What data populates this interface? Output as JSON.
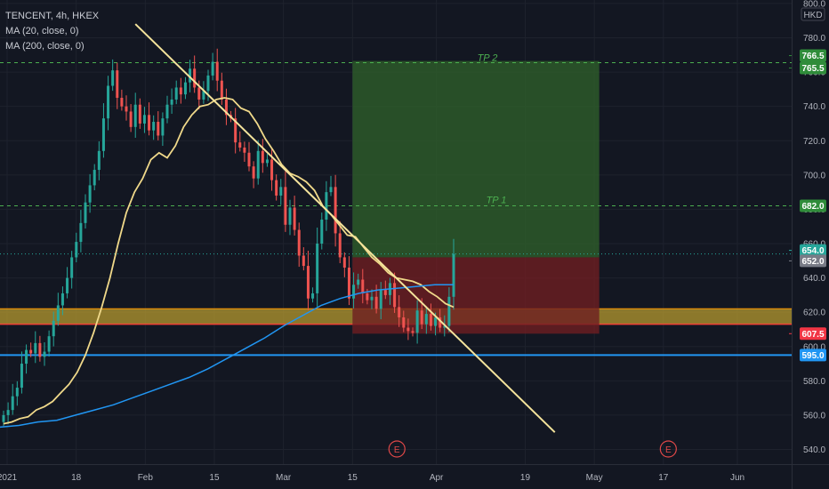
{
  "legend": {
    "symbol": "TENCENT, 4h, HKEX",
    "ma20": "MA (20, close, 0)",
    "ma200": "MA (200, close, 0)"
  },
  "currency": "HKD",
  "colors": {
    "background": "#131722",
    "up": "#26a69a",
    "down": "#ef5350",
    "ma20": "#f0d98a",
    "ma200": "#2196f3",
    "trendline": "#f5e49c",
    "target_zone": "#2e5e2a",
    "stop_zone": "#6e1e22",
    "support_zone": "#b59a2f",
    "support_line": "#2196f3",
    "earnings": "#e04848"
  },
  "chart_data": {
    "type": "candlestick",
    "title": "TENCENT, 4h, HKEX",
    "yaxis": {
      "unit": "HKD",
      "ylim": [
        537,
        800
      ],
      "ticks": [
        540.0,
        560.0,
        580.0,
        600.0,
        620.0,
        640.0,
        660.0,
        680.0,
        700.0,
        720.0,
        740.0,
        760.0,
        780.0,
        800.0
      ]
    },
    "xaxis": {
      "range": [
        "2021-01-04",
        "2021-06-07"
      ],
      "ticks": [
        {
          "label": "2021",
          "date": "2021-01-04"
        },
        {
          "label": "18",
          "date": "2021-01-18"
        },
        {
          "label": "Feb",
          "date": "2021-02-01"
        },
        {
          "label": "15",
          "date": "2021-02-15"
        },
        {
          "label": "Mar",
          "date": "2021-03-01"
        },
        {
          "label": "15",
          "date": "2021-03-15"
        },
        {
          "label": "Apr",
          "date": "2021-04-01"
        },
        {
          "label": "19",
          "date": "2021-04-19"
        },
        {
          "label": "May",
          "date": "2021-05-03"
        },
        {
          "label": "17",
          "date": "2021-05-17"
        },
        {
          "label": "Jun",
          "date": "2021-06-01"
        }
      ]
    },
    "closes": [
      560,
      563,
      571,
      576,
      590,
      598,
      596,
      602,
      594,
      597,
      606,
      615,
      624,
      631,
      640,
      652,
      661,
      672,
      684,
      694,
      703,
      714,
      733,
      752,
      761,
      745,
      740,
      737,
      728,
      741,
      730,
      735,
      726,
      731,
      723,
      733,
      741,
      744,
      751,
      747,
      754,
      762,
      751,
      744,
      749,
      758,
      766,
      755,
      744,
      735,
      733,
      719,
      716,
      713,
      705,
      698,
      714,
      707,
      709,
      697,
      688,
      693,
      671,
      681,
      668,
      653,
      647,
      628,
      631,
      660,
      674,
      690,
      693,
      666,
      652,
      646,
      628,
      636,
      639,
      631,
      627,
      629,
      622,
      633,
      630,
      637,
      623,
      617,
      611,
      609,
      608,
      621,
      613,
      619,
      612,
      617,
      611,
      612,
      629,
      654
    ],
    "moving_averages": [
      {
        "name": "MA (20, close, 0)",
        "values": [
          555,
          556,
          558,
          559,
          563,
          565,
          568,
          573,
          578,
          585,
          595,
          608,
          623,
          640,
          660,
          678,
          690,
          698,
          709,
          713,
          710,
          717,
          728,
          735,
          740,
          741,
          744,
          745,
          744,
          739,
          737,
          730,
          721,
          714,
          706,
          701,
          699,
          696,
          691,
          682,
          677,
          671,
          665,
          664,
          658,
          652,
          648,
          643,
          640,
          639,
          638,
          636,
          632,
          629,
          625,
          623
        ]
      },
      {
        "name": "MA (200, close, 0)",
        "values": [
          553,
          554,
          556,
          557,
          560,
          563,
          566,
          570,
          574,
          578,
          582,
          587,
          593,
          599,
          605,
          612,
          618,
          624,
          628,
          631,
          633,
          634,
          635,
          636,
          636
        ]
      }
    ],
    "trendline": {
      "from": {
        "date": "2021-01-30",
        "price": 788
      },
      "to": {
        "date": "2021-04-25",
        "price": 550
      }
    },
    "horizontal_levels": [
      {
        "label": "TP 2",
        "price": 765.5
      },
      {
        "label": "TP 1",
        "price": 682.0
      },
      {
        "label": "",
        "price": 654.0
      },
      {
        "label": "",
        "price": 607.5
      },
      {
        "label": "",
        "price": 595.0
      }
    ],
    "long_position": {
      "start": "2021-03-15",
      "end": "2021-05-04",
      "entry": 652.0,
      "target": 766.5,
      "stop": 607.5
    },
    "support_zone": {
      "from": 613,
      "to": 622
    },
    "price_labels": [
      766.5,
      765.5,
      682.0,
      654.0,
      652.0,
      607.5,
      595.0
    ],
    "events": [
      {
        "label": "E",
        "date": "2021-03-24"
      },
      {
        "label": "E",
        "date": "2021-05-18"
      }
    ]
  }
}
